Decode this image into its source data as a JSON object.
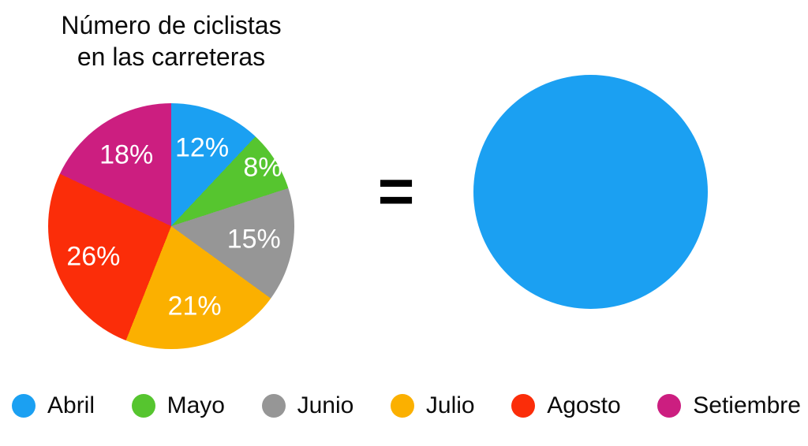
{
  "title": {
    "line1": "Número de ciclistas",
    "line2": "en las carreteras"
  },
  "equals_sign": "=",
  "chart_data": {
    "type": "pie",
    "title": "Número de ciclistas en las carreteras",
    "categories": [
      "Abril",
      "Mayo",
      "Junio",
      "Julio",
      "Agosto",
      "Setiembre"
    ],
    "values": [
      12,
      8,
      15,
      21,
      26,
      18
    ],
    "labels": [
      "12%",
      "8%",
      "15%",
      "21%",
      "26%",
      "18%"
    ],
    "colors": [
      "#1BA0F2",
      "#56C52F",
      "#969696",
      "#FBB000",
      "#FB2D09",
      "#CC1E80"
    ],
    "start_angle_deg": 0,
    "direction": "clockwise",
    "label_color": "#FFFFFF",
    "legend_position": "bottom"
  },
  "right_circle": {
    "color": "#1BA0F2"
  },
  "legend": {
    "items": [
      {
        "label": "Abril",
        "color": "#1BA0F2"
      },
      {
        "label": "Mayo",
        "color": "#56C52F"
      },
      {
        "label": "Junio",
        "color": "#969696"
      },
      {
        "label": "Julio",
        "color": "#FBB000"
      },
      {
        "label": "Agosto",
        "color": "#FB2D09"
      },
      {
        "label": "Setiembre",
        "color": "#CC1E80"
      }
    ]
  }
}
